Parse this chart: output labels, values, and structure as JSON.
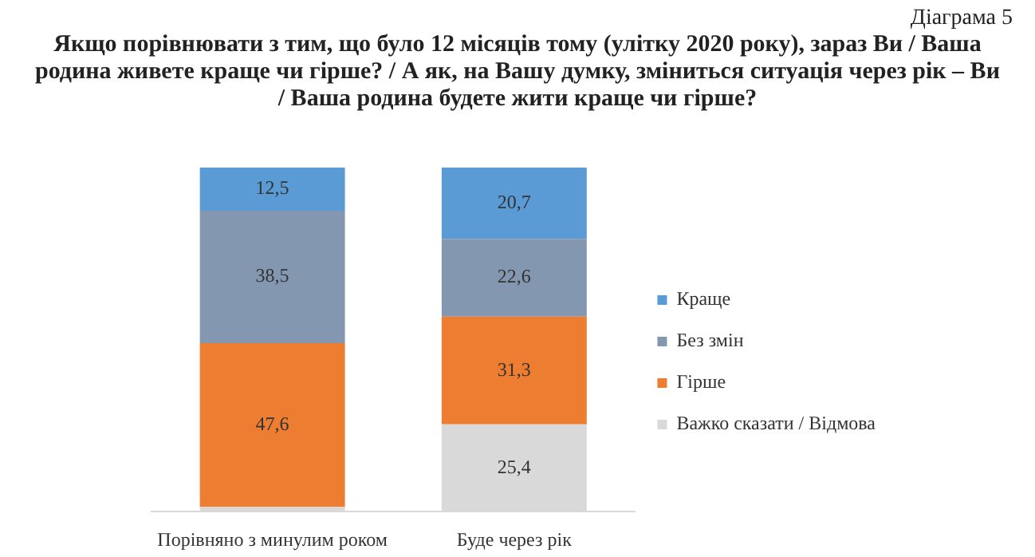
{
  "chart_data": {
    "type": "bar",
    "stacked": true,
    "title": "Якщо порівнювати з тим, що було 12 місяців тому (улітку 2020 року), зараз Ви / Ваша родина живете краще чи гірше? / А як, на Вашу думку, зміниться ситуація через рік – Ви / Ваша родина будете жити краще чи гірше?",
    "annotations": [
      "Діаграма 5"
    ],
    "categories": [
      "Порівняно з минулим роком",
      "Буде через рік"
    ],
    "legend": "right",
    "series": [
      {
        "name": "Важко сказати / Відмова",
        "color": "#d9d9d9",
        "values": [
          1.4,
          25.4
        ],
        "value_labels": [
          null,
          "25,4"
        ]
      },
      {
        "name": "Гірше",
        "color": "#ed7d31",
        "values": [
          47.6,
          31.3
        ],
        "value_labels": [
          "47,6",
          "31,3"
        ]
      },
      {
        "name": "Без змін",
        "color": "#8497b0",
        "values": [
          38.5,
          22.6
        ],
        "value_labels": [
          "38,5",
          "22,6"
        ]
      },
      {
        "name": "Краще",
        "color": "#5b9bd5",
        "values": [
          12.5,
          20.7
        ],
        "value_labels": [
          "12,5",
          "20,7"
        ]
      }
    ]
  }
}
